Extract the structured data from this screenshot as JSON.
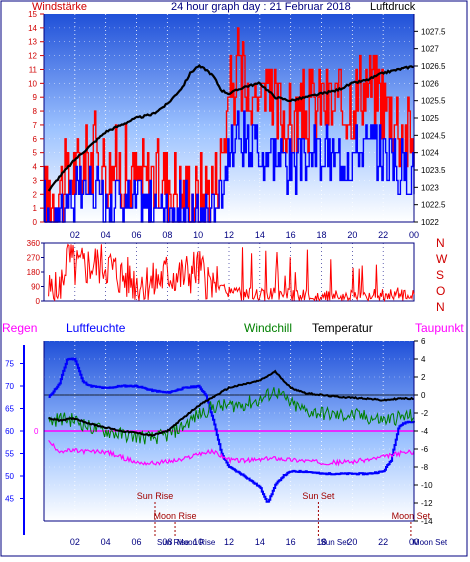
{
  "header": {
    "left_label": "Windstärke",
    "title": "24 hour graph day : 21 Februar 2018",
    "right_label": "Luftdruck"
  },
  "colors": {
    "wind_gust": "#ff0000",
    "wind_avg": "#0000ff",
    "pressure": "#000000",
    "winddir": "#ff0000",
    "humidity": "#0000ff",
    "windchill": "#008000",
    "temperature": "#000000",
    "dewpoint": "#ff00ff",
    "rain": "#ff00ff",
    "frame": "#000080",
    "left_axis_red": "#d00000"
  },
  "chart_data": [
    {
      "type": "bar",
      "ylim_left": [
        0,
        15
      ],
      "ylim_right": [
        1022.0,
        1028.0
      ],
      "x_ticks": [
        "02",
        "04",
        "06",
        "08",
        "10",
        "12",
        "14",
        "16",
        "18",
        "20",
        "22",
        "00"
      ],
      "y_ticks_left": [
        "0",
        "1",
        "2",
        "3",
        "4",
        "5",
        "6",
        "7",
        "8",
        "9",
        "10",
        "11",
        "12",
        "13",
        "14",
        "15"
      ],
      "y_ticks_right": [
        "1022",
        "1022.5",
        "1023",
        "1023.5",
        "1024",
        "1024.5",
        "1025",
        "1025.5",
        "1026",
        "1026.5",
        "1027",
        "1027.5"
      ],
      "series": [
        {
          "name": "Windstärke",
          "color": "#ff0000"
        },
        {
          "name": "Luftdruck",
          "color": "#000000",
          "x_hours": [
            0.3,
            1,
            2,
            3,
            4,
            5,
            6,
            7,
            8,
            9,
            9.5,
            10,
            10.5,
            11,
            11.5,
            12,
            13,
            14,
            15,
            16,
            17,
            18,
            19,
            20,
            21,
            22,
            23,
            24
          ],
          "values": [
            1022.9,
            1023.3,
            1023.8,
            1024.2,
            1024.6,
            1024.8,
            1025.0,
            1025.1,
            1025.4,
            1025.9,
            1026.3,
            1026.5,
            1026.4,
            1026.2,
            1025.8,
            1025.7,
            1025.9,
            1026.0,
            1025.6,
            1025.5,
            1025.6,
            1025.7,
            1025.8,
            1026.0,
            1026.1,
            1026.3,
            1026.4,
            1026.5
          ]
        }
      ]
    },
    {
      "type": "line",
      "ylim": [
        0,
        360
      ],
      "y_ticks": [
        "0",
        "90",
        "180",
        "270",
        "360"
      ],
      "right_labels": [
        "N",
        "W",
        "S",
        "O",
        "N"
      ],
      "series": [
        {
          "name": "winddir",
          "color": "#ff0000"
        }
      ]
    },
    {
      "type": "line",
      "x_ticks": [
        "02",
        "04",
        "06",
        "08",
        "10",
        "12",
        "14",
        "16",
        "18",
        "20",
        "22",
        "00"
      ],
      "ylim_left": [
        40,
        80
      ],
      "y_ticks_left": [
        "45",
        "50",
        "55",
        "60",
        "65",
        "70",
        "75"
      ],
      "ylim_right": [
        -14,
        6
      ],
      "y_ticks_right": [
        "-14",
        "-12",
        "-10",
        "-8",
        "-6",
        "-4",
        "-2",
        "0",
        "2",
        "4",
        "6"
      ],
      "rain_zero_label": "0",
      "legend": {
        "rain": "Regen",
        "humidity": "Luftfeuchte",
        "windchill": "Windchill",
        "temperature": "Temperatur",
        "dewpoint": "Taupunkt"
      },
      "annotations": [
        {
          "text": "Sun Rise",
          "hour": 7.2
        },
        {
          "text": "Moon Rise",
          "hour": 8.5
        },
        {
          "text": "Sun Set",
          "hour": 17.8
        },
        {
          "text": "Moon Set",
          "hour": 23.8
        }
      ],
      "series": [
        {
          "name": "Luftfeuchte",
          "color": "#0000ff",
          "x_hours": [
            0.3,
            1,
            1.5,
            2,
            2.5,
            3,
            4,
            5,
            6,
            7,
            8,
            9,
            10,
            10.5,
            11,
            11.5,
            12,
            13,
            14,
            14.5,
            15,
            15.5,
            16,
            17,
            18,
            19,
            20,
            21,
            22,
            22.5,
            23,
            23.5,
            24
          ],
          "values": [
            67.5,
            70.5,
            76,
            76,
            71,
            70,
            69.5,
            70,
            70,
            69,
            68.5,
            69.5,
            70,
            68,
            62,
            55,
            52,
            50,
            47.5,
            44,
            48,
            50,
            51,
            51,
            50.5,
            50.5,
            50.5,
            50.5,
            51,
            53.5,
            61,
            62,
            62
          ]
        },
        {
          "name": "Windchill",
          "color": "#008000",
          "x_hours": [
            0.3,
            1,
            2,
            3,
            4,
            5,
            6,
            7,
            8,
            9,
            10,
            11,
            12,
            13,
            14,
            15,
            16,
            17,
            18,
            19,
            20,
            21,
            22,
            23,
            24
          ],
          "values": [
            -3.0,
            -2.6,
            -2.8,
            -3.6,
            -4.0,
            -4.4,
            -4.6,
            -4.8,
            -4.5,
            -3.5,
            -2.2,
            -1.3,
            -1.2,
            -1.0,
            -0.6,
            0.5,
            -1.0,
            -1.8,
            -2.0,
            -2.3,
            -2.2,
            -2.5,
            -2.8,
            -2.5,
            -2.3
          ]
        },
        {
          "name": "Temperatur",
          "color": "#000000",
          "x_hours": [
            0.3,
            1,
            2,
            3,
            4,
            5,
            6,
            7,
            8,
            9,
            10,
            11,
            12,
            13,
            14,
            15,
            16,
            17,
            18,
            19,
            20,
            21,
            22,
            23,
            24
          ],
          "values": [
            -2.6,
            -2.8,
            -2.6,
            -3.2,
            -3.6,
            -4.0,
            -4.2,
            -4.5,
            -4.0,
            -2.6,
            -1.2,
            -0.2,
            0.8,
            1.2,
            1.6,
            2.6,
            0.8,
            0.2,
            0.0,
            -0.2,
            -0.3,
            -0.4,
            -0.6,
            -0.4,
            -0.4
          ]
        },
        {
          "name": "Taupunkt",
          "color": "#ff00ff",
          "x_hours": [
            0.3,
            1,
            2,
            3,
            4,
            5,
            6,
            7,
            8,
            9,
            10,
            11,
            12,
            13,
            14,
            15,
            16,
            17,
            18,
            19,
            20,
            21,
            22,
            23,
            24
          ],
          "values": [
            -5.2,
            -6.2,
            -6.2,
            -6.3,
            -6.3,
            -6.9,
            -7.5,
            -7.6,
            -7.4,
            -7.2,
            -6.5,
            -6.3,
            -7.2,
            -7.3,
            -7.2,
            -7.0,
            -7.2,
            -7.3,
            -7.5,
            -7.5,
            -7.4,
            -7.2,
            -6.9,
            -6.5,
            -6.3
          ]
        },
        {
          "name": "Regen",
          "color": "#ff00ff",
          "values": [
            0
          ]
        }
      ]
    }
  ]
}
